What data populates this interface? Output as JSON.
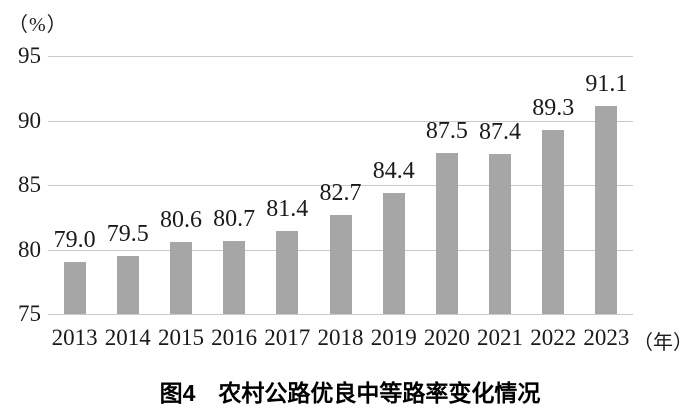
{
  "figure": {
    "y_unit_label": "（%）",
    "x_unit_label": "（年）",
    "caption": "图4　农村公路优良中等路率变化情况"
  },
  "chart_data": {
    "type": "bar",
    "title": "图4 农村公路优良中等路率变化情况",
    "categories": [
      "2013",
      "2014",
      "2015",
      "2016",
      "2017",
      "2018",
      "2019",
      "2020",
      "2021",
      "2022",
      "2023"
    ],
    "values": [
      79.0,
      79.5,
      80.6,
      80.7,
      81.4,
      82.7,
      84.4,
      87.5,
      87.4,
      89.3,
      91.1
    ],
    "value_labels": [
      "79.0",
      "79.5",
      "80.6",
      "80.7",
      "81.4",
      "82.7",
      "84.4",
      "87.5",
      "87.4",
      "89.3",
      "91.1"
    ],
    "xlabel": "（年）",
    "ylabel": "（%）",
    "ylim": [
      75,
      95
    ],
    "yticks": [
      95,
      90,
      85,
      80,
      75
    ],
    "grid": true,
    "legend": "none",
    "colors": {
      "bar": "#a6a6a6",
      "gridline": "#c9c9c9",
      "text": "#1a1a1a"
    }
  }
}
